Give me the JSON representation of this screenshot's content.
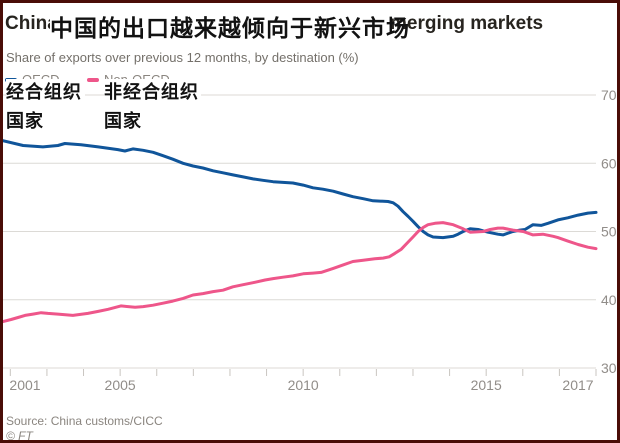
{
  "header": {
    "title_left": "China's",
    "title_right": "merging markets",
    "subtitle": "Share of exports over previous 12 months, by destination (%)"
  },
  "overlays": {
    "title_zh": "中国的出口越来越倾向于新兴市场",
    "legend_left_line1": "经合组织",
    "legend_left_line2": "国家",
    "legend_right_line1": "非经合组织",
    "legend_right_line2": "国家"
  },
  "legend": {
    "items": [
      {
        "label": "OECD",
        "color": "#10559a"
      },
      {
        "label": "Non-OECD",
        "color": "#ee568a"
      }
    ]
  },
  "footer": {
    "source": "Source: China customs/CICC",
    "copyright": "© FT"
  },
  "colors": {
    "oecd_line": "#10559a",
    "non_oecd_line": "#ee568a",
    "gridline": "#dcdad6",
    "tick": "#c9c5c0",
    "axis_label": "#918d89",
    "border": "#4a0d07"
  },
  "chart_data": {
    "type": "line",
    "title": "China's ... merging markets (original headline partly covered by Chinese translation overlay)",
    "subtitle": "Share of exports over previous 12 months, by destination (%)",
    "xlabel": "",
    "ylabel": "%",
    "ylim": [
      30,
      70
    ],
    "y_ticks": [
      30,
      40,
      50,
      60,
      70
    ],
    "x_tick_labels": [
      2001,
      2005,
      2010,
      2015,
      2017
    ],
    "x_range_years": [
      2001.8,
      2018.0
    ],
    "grid": "horizontal",
    "legend_position": "top-left",
    "series": [
      {
        "name": "OECD",
        "color": "#10559a",
        "points": [
          [
            2001.8,
            63.3
          ],
          [
            2002.35,
            62.6
          ],
          [
            2002.89,
            62.4
          ],
          [
            2003.3,
            62.6
          ],
          [
            2003.49,
            62.9
          ],
          [
            2003.93,
            62.7
          ],
          [
            2004.4,
            62.4
          ],
          [
            2004.94,
            62.0
          ],
          [
            2005.13,
            61.8
          ],
          [
            2005.35,
            62.1
          ],
          [
            2005.63,
            61.9
          ],
          [
            2005.9,
            61.6
          ],
          [
            2006.17,
            61.1
          ],
          [
            2006.44,
            60.6
          ],
          [
            2006.72,
            60.0
          ],
          [
            2006.99,
            59.6
          ],
          [
            2007.26,
            59.3
          ],
          [
            2007.54,
            58.9
          ],
          [
            2007.81,
            58.6
          ],
          [
            2008.08,
            58.3
          ],
          [
            2008.36,
            58.0
          ],
          [
            2008.63,
            57.7
          ],
          [
            2008.9,
            57.5
          ],
          [
            2009.18,
            57.3
          ],
          [
            2009.45,
            57.2
          ],
          [
            2009.72,
            57.1
          ],
          [
            2010.0,
            56.8
          ],
          [
            2010.27,
            56.4
          ],
          [
            2010.54,
            56.2
          ],
          [
            2010.82,
            55.9
          ],
          [
            2011.09,
            55.5
          ],
          [
            2011.36,
            55.1
          ],
          [
            2011.64,
            54.8
          ],
          [
            2011.91,
            54.5
          ],
          [
            2012.32,
            54.4
          ],
          [
            2012.46,
            54.2
          ],
          [
            2012.59,
            53.7
          ],
          [
            2012.73,
            52.9
          ],
          [
            2012.87,
            52.2
          ],
          [
            2013.0,
            51.5
          ],
          [
            2013.14,
            50.7
          ],
          [
            2013.28,
            50.0
          ],
          [
            2013.41,
            49.5
          ],
          [
            2013.55,
            49.2
          ],
          [
            2013.82,
            49.1
          ],
          [
            2014.1,
            49.3
          ],
          [
            2014.23,
            49.6
          ],
          [
            2014.37,
            50.0
          ],
          [
            2014.56,
            50.4
          ],
          [
            2014.78,
            50.3
          ],
          [
            2015.05,
            49.9
          ],
          [
            2015.32,
            49.6
          ],
          [
            2015.46,
            49.5
          ],
          [
            2015.73,
            50.0
          ],
          [
            2015.92,
            50.2
          ],
          [
            2016.06,
            50.3
          ],
          [
            2016.28,
            51.0
          ],
          [
            2016.5,
            50.9
          ],
          [
            2016.69,
            51.2
          ],
          [
            2016.96,
            51.7
          ],
          [
            2017.23,
            52.0
          ],
          [
            2017.51,
            52.4
          ],
          [
            2017.78,
            52.7
          ],
          [
            2018.0,
            52.8
          ]
        ]
      },
      {
        "name": "Non-OECD",
        "color": "#ee568a",
        "points": [
          [
            2001.8,
            36.8
          ],
          [
            2002.02,
            37.1
          ],
          [
            2002.21,
            37.4
          ],
          [
            2002.4,
            37.7
          ],
          [
            2002.62,
            37.9
          ],
          [
            2002.84,
            38.1
          ],
          [
            2003.03,
            38.0
          ],
          [
            2003.3,
            37.9
          ],
          [
            2003.71,
            37.7
          ],
          [
            2004.12,
            38.0
          ],
          [
            2004.4,
            38.3
          ],
          [
            2004.67,
            38.6
          ],
          [
            2005.02,
            39.1
          ],
          [
            2005.22,
            39.0
          ],
          [
            2005.41,
            38.9
          ],
          [
            2005.63,
            39.0
          ],
          [
            2005.9,
            39.2
          ],
          [
            2006.17,
            39.5
          ],
          [
            2006.44,
            39.8
          ],
          [
            2006.72,
            40.2
          ],
          [
            2006.99,
            40.7
          ],
          [
            2007.26,
            40.9
          ],
          [
            2007.54,
            41.2
          ],
          [
            2007.81,
            41.4
          ],
          [
            2008.08,
            41.9
          ],
          [
            2008.36,
            42.2
          ],
          [
            2008.63,
            42.5
          ],
          [
            2008.96,
            42.9
          ],
          [
            2009.18,
            43.1
          ],
          [
            2009.45,
            43.3
          ],
          [
            2009.72,
            43.5
          ],
          [
            2010.0,
            43.8
          ],
          [
            2010.27,
            43.9
          ],
          [
            2010.49,
            44.0
          ],
          [
            2010.82,
            44.6
          ],
          [
            2011.09,
            45.1
          ],
          [
            2011.36,
            45.6
          ],
          [
            2011.64,
            45.8
          ],
          [
            2011.96,
            46.0
          ],
          [
            2012.18,
            46.1
          ],
          [
            2012.35,
            46.3
          ],
          [
            2012.51,
            46.8
          ],
          [
            2012.68,
            47.4
          ],
          [
            2012.84,
            48.3
          ],
          [
            2013.0,
            49.2
          ],
          [
            2013.14,
            50.0
          ],
          [
            2013.28,
            50.6
          ],
          [
            2013.41,
            51.0
          ],
          [
            2013.6,
            51.2
          ],
          [
            2013.82,
            51.3
          ],
          [
            2014.1,
            51.0
          ],
          [
            2014.37,
            50.4
          ],
          [
            2014.56,
            49.9
          ],
          [
            2014.92,
            50.0
          ],
          [
            2015.11,
            50.3
          ],
          [
            2015.32,
            50.5
          ],
          [
            2015.46,
            50.5
          ],
          [
            2015.73,
            50.2
          ],
          [
            2016.01,
            50.0
          ],
          [
            2016.28,
            49.5
          ],
          [
            2016.55,
            49.6
          ],
          [
            2016.83,
            49.3
          ],
          [
            2016.96,
            49.1
          ],
          [
            2017.23,
            48.6
          ],
          [
            2017.51,
            48.1
          ],
          [
            2017.78,
            47.7
          ],
          [
            2018.0,
            47.5
          ]
        ]
      }
    ]
  }
}
